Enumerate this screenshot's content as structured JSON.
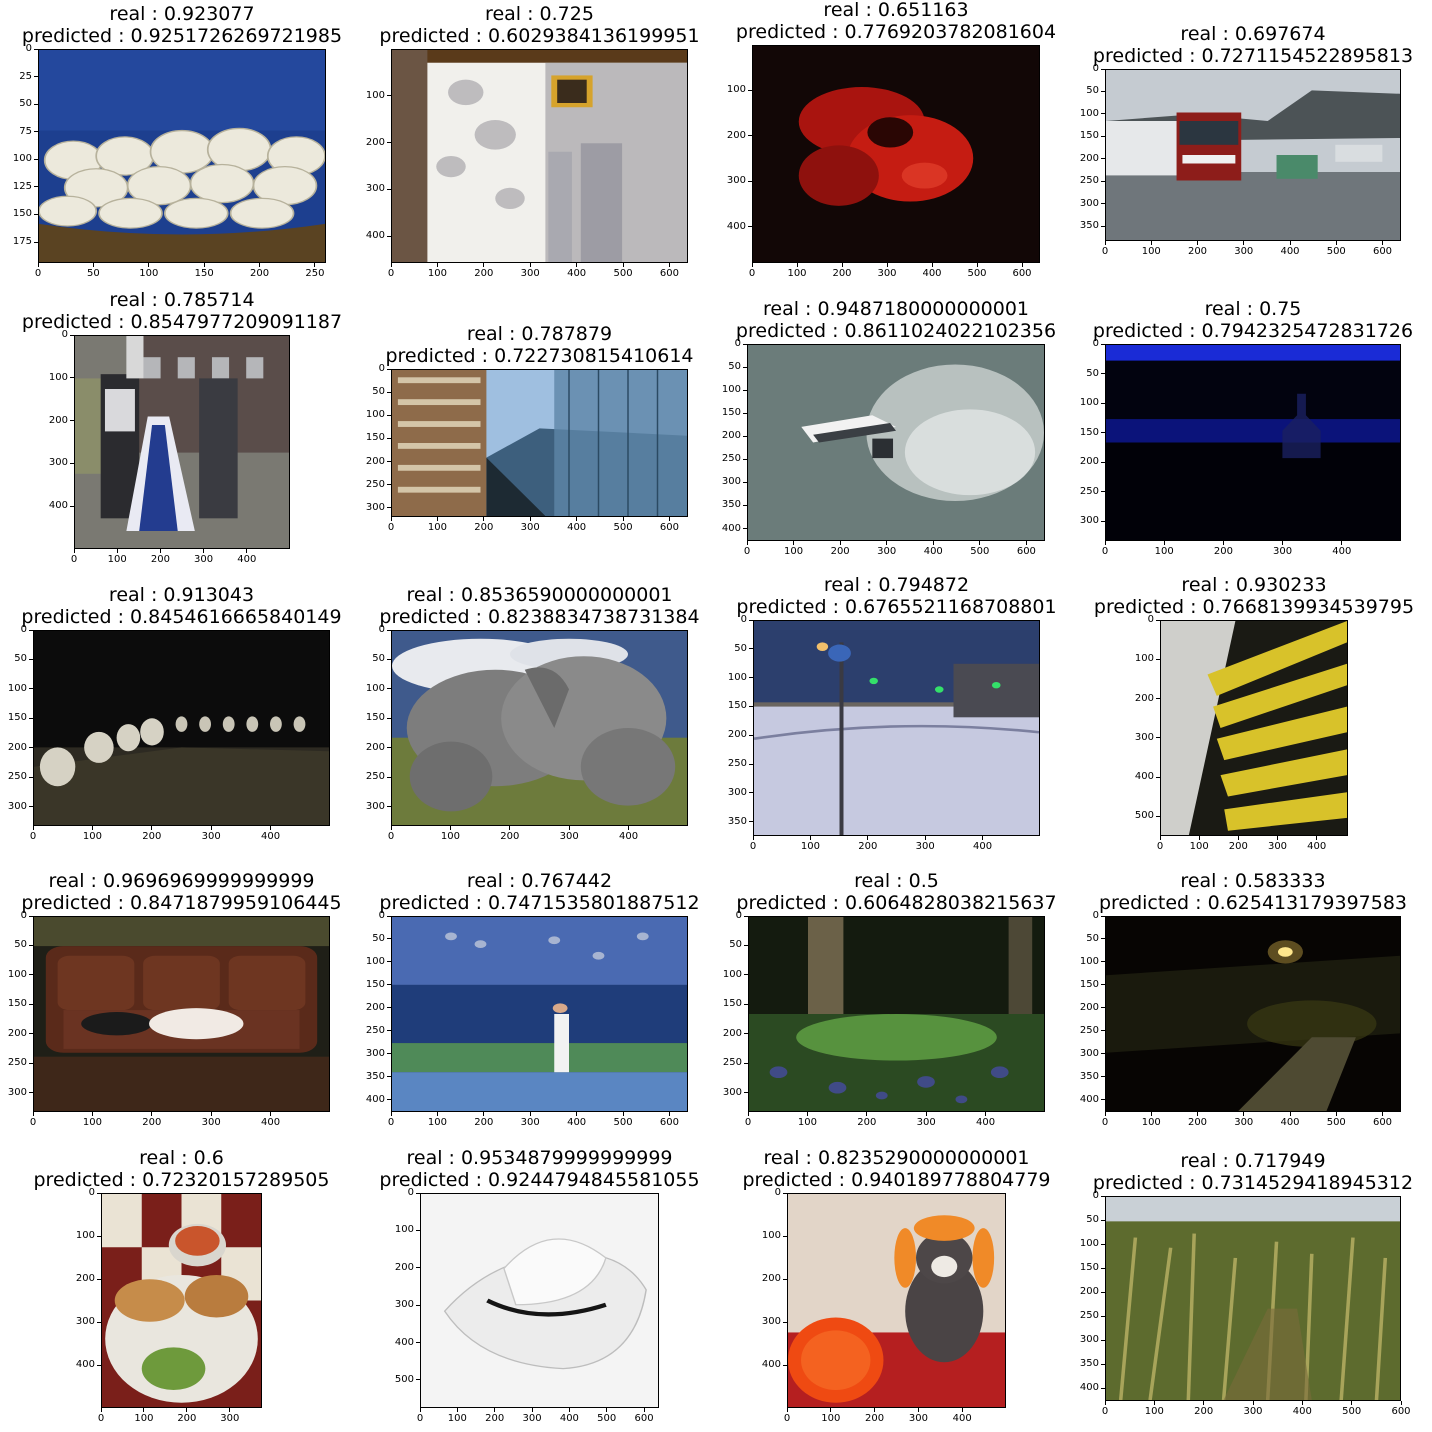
{
  "chart_data": [
    {
      "type": "image",
      "title": [
        "real : 0.923077",
        "predicted : 0.9251726269721985"
      ],
      "xticks": [
        "0",
        "50",
        "100",
        "150",
        "200",
        "250"
      ],
      "yticks": [
        "0",
        "25",
        "50",
        "75",
        "100",
        "125",
        "150",
        "175"
      ],
      "xlim": [
        0,
        260
      ],
      "ylim": [
        194,
        0
      ],
      "scene": "eggs"
    },
    {
      "type": "image",
      "title": [
        "real : 0.725",
        "predicted : 0.6029384136199951"
      ],
      "xticks": [
        "0",
        "100",
        "200",
        "300",
        "400",
        "500",
        "600"
      ],
      "yticks": [
        "100",
        "200",
        "300",
        "400"
      ],
      "xlim": [
        0,
        640
      ],
      "ylim": [
        457,
        0
      ],
      "scene": "wall"
    },
    {
      "type": "image",
      "title": [
        "real : 0.651163",
        "predicted : 0.7769203782081604"
      ],
      "xticks": [
        "0",
        "100",
        "200",
        "300",
        "400",
        "500",
        "600"
      ],
      "yticks": [
        "100",
        "200",
        "300",
        "400"
      ],
      "xlim": [
        0,
        640
      ],
      "ylim": [
        480,
        0
      ],
      "scene": "red"
    },
    {
      "type": "image",
      "title": [
        "real : 0.697674",
        "predicted : 0.7271154522895813"
      ],
      "xticks": [
        "0",
        "100",
        "200",
        "300",
        "400",
        "500",
        "600"
      ],
      "yticks": [
        "0",
        "50",
        "100",
        "150",
        "200",
        "250",
        "300",
        "350"
      ],
      "xlim": [
        0,
        640
      ],
      "ylim": [
        383,
        0
      ],
      "scene": "bus"
    },
    {
      "type": "image",
      "title": [
        "real : 0.785714",
        "predicted : 0.8547977209091187"
      ],
      "xticks": [
        "0",
        "100",
        "200",
        "300",
        "400"
      ],
      "yticks": [
        "0",
        "100",
        "200",
        "300",
        "400"
      ],
      "xlim": [
        0,
        500
      ],
      "ylim": [
        500,
        0
      ],
      "scene": "cosplay"
    },
    {
      "type": "image",
      "title": [
        "real : 0.787879",
        "predicted : 0.722730815410614"
      ],
      "xticks": [
        "0",
        "100",
        "200",
        "300",
        "400",
        "500",
        "600"
      ],
      "yticks": [
        "0",
        "50",
        "100",
        "150",
        "200",
        "250",
        "300"
      ],
      "xlim": [
        0,
        640
      ],
      "ylim": [
        320,
        0
      ],
      "scene": "building"
    },
    {
      "type": "image",
      "title": [
        "real : 0.9487180000000001",
        "predicted : 0.8611024022102356"
      ],
      "xticks": [
        "0",
        "100",
        "200",
        "300",
        "400",
        "500",
        "600"
      ],
      "yticks": [
        "0",
        "50",
        "100",
        "150",
        "200",
        "250",
        "300",
        "350",
        "400"
      ],
      "xlim": [
        0,
        640
      ],
      "ylim": [
        427,
        0
      ],
      "scene": "jetski"
    },
    {
      "type": "image",
      "title": [
        "real : 0.75",
        "predicted : 0.7942325472831726"
      ],
      "xticks": [
        "0",
        "100",
        "200",
        "300",
        "400"
      ],
      "yticks": [
        "0",
        "50",
        "100",
        "150",
        "200",
        "250",
        "300"
      ],
      "xlim": [
        0,
        500
      ],
      "ylim": [
        333,
        0
      ],
      "scene": "bottle"
    },
    {
      "type": "image",
      "title": [
        "real : 0.913043",
        "predicted : 0.8454616665840149"
      ],
      "xticks": [
        "0",
        "100",
        "200",
        "300",
        "400"
      ],
      "yticks": [
        "0",
        "50",
        "100",
        "150",
        "200",
        "250",
        "300"
      ],
      "xlim": [
        0,
        500
      ],
      "ylim": [
        333,
        0
      ],
      "scene": "urinals"
    },
    {
      "type": "image",
      "title": [
        "real : 0.8536590000000001",
        "predicted : 0.8238834738731384"
      ],
      "xticks": [
        "0",
        "100",
        "200",
        "300",
        "400"
      ],
      "yticks": [
        "0",
        "50",
        "100",
        "150",
        "200",
        "250",
        "300"
      ],
      "xlim": [
        0,
        500
      ],
      "ylim": [
        333,
        0
      ],
      "scene": "elephants"
    },
    {
      "type": "image",
      "title": [
        "real : 0.794872",
        "predicted : 0.6765521168708801"
      ],
      "xticks": [
        "0",
        "100",
        "200",
        "300",
        "400"
      ],
      "yticks": [
        "0",
        "50",
        "100",
        "150",
        "200",
        "250",
        "300",
        "350"
      ],
      "xlim": [
        0,
        500
      ],
      "ylim": [
        375,
        0
      ],
      "scene": "snow"
    },
    {
      "type": "image",
      "title": [
        "real : 0.930233",
        "predicted : 0.7668139934539795"
      ],
      "xticks": [
        "0",
        "100",
        "200",
        "300",
        "400"
      ],
      "yticks": [
        "0",
        "100",
        "200",
        "300",
        "400",
        "500"
      ],
      "xlim": [
        0,
        480
      ],
      "ylim": [
        550,
        0
      ],
      "scene": "cables"
    },
    {
      "type": "image",
      "title": [
        "real : 0.9696969999999999",
        "predicted : 0.8471879959106445"
      ],
      "xticks": [
        "0",
        "100",
        "200",
        "300",
        "400"
      ],
      "yticks": [
        "0",
        "50",
        "100",
        "150",
        "200",
        "250",
        "300"
      ],
      "xlim": [
        0,
        500
      ],
      "ylim": [
        333,
        0
      ],
      "scene": "sofa"
    },
    {
      "type": "image",
      "title": [
        "real : 0.767442",
        "predicted : 0.7471535801887512"
      ],
      "xticks": [
        "0",
        "100",
        "200",
        "300",
        "400",
        "500",
        "600"
      ],
      "yticks": [
        "0",
        "50",
        "100",
        "150",
        "200",
        "250",
        "300",
        "350",
        "400"
      ],
      "xlim": [
        0,
        640
      ],
      "ylim": [
        427,
        0
      ],
      "scene": "tennis"
    },
    {
      "type": "image",
      "title": [
        "real : 0.5",
        "predicted : 0.6064828038215637"
      ],
      "xticks": [
        "0",
        "100",
        "200",
        "300",
        "400"
      ],
      "yticks": [
        "0",
        "50",
        "100",
        "150",
        "200",
        "250",
        "300"
      ],
      "xlim": [
        0,
        500
      ],
      "ylim": [
        333,
        0
      ],
      "scene": "forest"
    },
    {
      "type": "image",
      "title": [
        "real : 0.583333",
        "predicted : 0.625413179397583"
      ],
      "xticks": [
        "0",
        "100",
        "200",
        "300",
        "400",
        "500",
        "600"
      ],
      "yticks": [
        "0",
        "50",
        "100",
        "150",
        "200",
        "250",
        "300",
        "350",
        "400"
      ],
      "xlim": [
        0,
        640
      ],
      "ylim": [
        427,
        0
      ],
      "scene": "night"
    },
    {
      "type": "image",
      "title": [
        "real : 0.6",
        "predicted : 0.72320157289505"
      ],
      "xticks": [
        "0",
        "100",
        "200",
        "300"
      ],
      "yticks": [
        "0",
        "100",
        "200",
        "300",
        "400"
      ],
      "xlim": [
        0,
        375
      ],
      "ylim": [
        500,
        0
      ],
      "scene": "food"
    },
    {
      "type": "image",
      "title": [
        "real : 0.9534879999999999",
        "predicted : 0.9244794845581055"
      ],
      "xticks": [
        "0",
        "100",
        "200",
        "300",
        "400",
        "500",
        "600"
      ],
      "yticks": [
        "0",
        "100",
        "200",
        "300",
        "400",
        "500"
      ],
      "xlim": [
        0,
        640
      ],
      "ylim": [
        575,
        0
      ],
      "scene": "hat"
    },
    {
      "type": "image",
      "title": [
        "real : 0.8235290000000001",
        "predicted : 0.940189778804779"
      ],
      "xticks": [
        "0",
        "100",
        "200",
        "300",
        "400"
      ],
      "yticks": [
        "0",
        "100",
        "200",
        "300",
        "400"
      ],
      "xlim": [
        0,
        500
      ],
      "ylim": [
        500,
        0
      ],
      "scene": "dog"
    },
    {
      "type": "image",
      "title": [
        "real : 0.717949",
        "predicted : 0.7314529418945312"
      ],
      "xticks": [
        "0",
        "100",
        "200",
        "300",
        "400",
        "500",
        "600"
      ],
      "yticks": [
        "0",
        "50",
        "100",
        "150",
        "200",
        "250",
        "300",
        "350",
        "400"
      ],
      "xlim": [
        0,
        600
      ],
      "ylim": [
        427,
        0
      ],
      "scene": "corn"
    }
  ]
}
